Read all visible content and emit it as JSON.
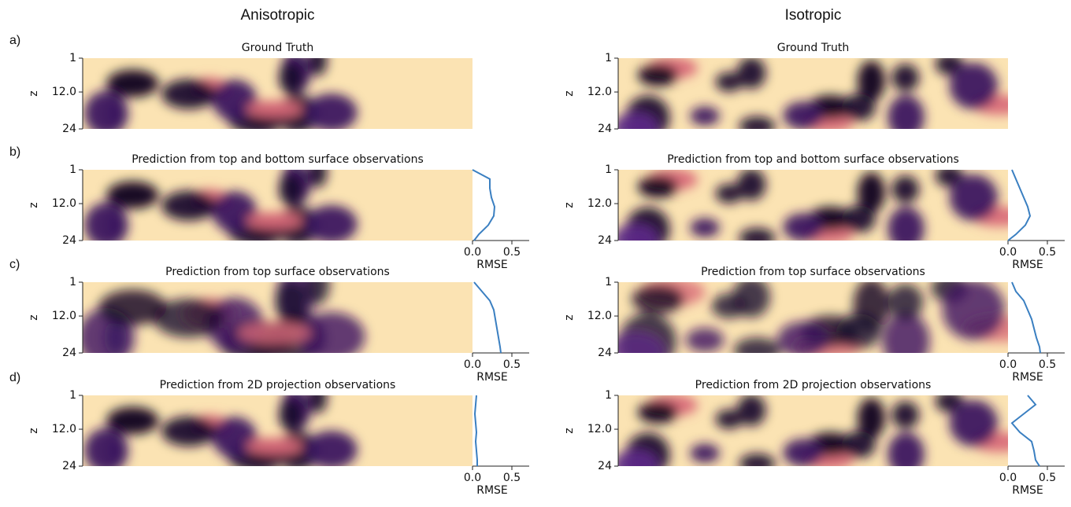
{
  "columns": [
    {
      "title": "Anisotropic",
      "panels": [
        {
          "title": "Ground Truth"
        },
        {
          "title": "Prediction from top and bottom surface observations",
          "rmse_values": [
            0,
            0.22,
            0.22,
            0.24,
            0.28,
            0.27,
            0.2,
            0.08,
            0.02
          ]
        },
        {
          "title": "Prediction from top surface observations",
          "rmse_values": [
            0.02,
            0.12,
            0.22,
            0.27,
            0.29,
            0.31,
            0.33,
            0.35,
            0.36
          ]
        },
        {
          "title": "Prediction from 2D projection observations",
          "rmse_values": [
            0.05,
            0.04,
            0.03,
            0.04,
            0.05,
            0.04,
            0.05,
            0.06,
            0.06
          ]
        }
      ]
    },
    {
      "title": "Isotropic",
      "panels": [
        {
          "title": "Ground Truth"
        },
        {
          "title": "Prediction from top and bottom surface observations",
          "rmse_values": [
            0.05,
            0.1,
            0.15,
            0.2,
            0.25,
            0.28,
            0.22,
            0.1,
            0.0
          ]
        },
        {
          "title": "Prediction from top surface observations",
          "rmse_values": [
            0.05,
            0.1,
            0.2,
            0.25,
            0.3,
            0.33,
            0.36,
            0.4,
            0.41
          ]
        },
        {
          "title": "Prediction from 2D projection observations",
          "rmse_values": [
            0.25,
            0.35,
            0.2,
            0.05,
            0.15,
            0.3,
            0.33,
            0.35,
            0.4
          ]
        }
      ]
    }
  ],
  "row_labels": [
    "a)",
    "b)",
    "c)",
    "d)"
  ],
  "heatmap": {
    "ylabel": "z",
    "ylim": [
      1,
      24
    ],
    "yticks": [
      1,
      {
        "value": 12,
        "label": "12.0"
      },
      24
    ]
  },
  "rmse": {
    "xlabel": "RMSE",
    "xlim": [
      0,
      0.72
    ],
    "xticks": [
      {
        "value": 0,
        "label": "0.0"
      },
      0.5
    ],
    "z": [
      1,
      4,
      7,
      10,
      13,
      16,
      19,
      22,
      24
    ]
  }
}
